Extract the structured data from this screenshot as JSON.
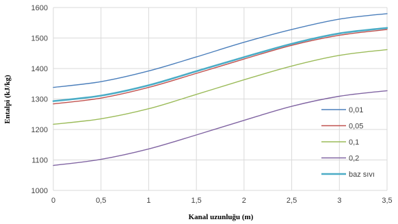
{
  "chart_data": {
    "type": "line",
    "xlabel": "Kanal uzunluğu (m)",
    "ylabel": "Entalpi (kJ/kg)",
    "xlim": [
      0,
      3.5
    ],
    "ylim": [
      1000,
      1600
    ],
    "x_ticks": [
      "0",
      "0,5",
      "1",
      "1,5",
      "2",
      "2,5",
      "3",
      "3,5"
    ],
    "y_ticks": [
      "1000",
      "1100",
      "1200",
      "1300",
      "1400",
      "1500",
      "1600"
    ],
    "grid": true,
    "legend_position": "right",
    "x": [
      0,
      0.5,
      1,
      1.5,
      2,
      2.5,
      3,
      3.5
    ],
    "series": [
      {
        "name": "0,01",
        "color": "#4a7ebb",
        "values": [
          1338,
          1357,
          1392,
          1438,
          1486,
          1528,
          1562,
          1580
        ]
      },
      {
        "name": "0,05",
        "color": "#c0504d",
        "values": [
          1284,
          1303,
          1338,
          1384,
          1431,
          1476,
          1509,
          1528
        ]
      },
      {
        "name": "0,1",
        "color": "#9bbb59",
        "values": [
          1217,
          1235,
          1268,
          1315,
          1363,
          1408,
          1443,
          1462
        ]
      },
      {
        "name": "0,2",
        "color": "#8064a2",
        "values": [
          1082,
          1102,
          1136,
          1182,
          1230,
          1276,
          1309,
          1327
        ]
      },
      {
        "name": "baz sıvı",
        "color": "#4bacc6",
        "values": [
          1293,
          1311,
          1345,
          1391,
          1437,
          1481,
          1515,
          1533
        ]
      }
    ]
  }
}
